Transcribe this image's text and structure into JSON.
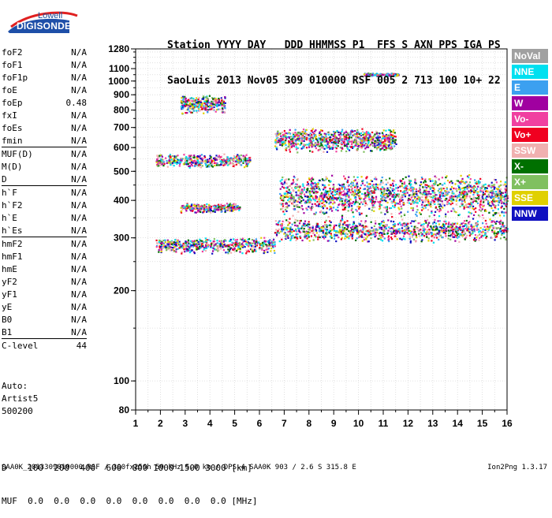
{
  "logo": {
    "top": "Lowell",
    "bottom": "DIGISONDE"
  },
  "header": {
    "line1": "Station YYYY DAY   DDD HHMMSS P1  FFS S AXN PPS IGA PS",
    "line2": "SaoLuis 2013 Nov05 309 010000 RSF 005 2 713 100 10+ 22"
  },
  "params": [
    {
      "k": "foF2",
      "v": "N/A",
      "sep": false
    },
    {
      "k": "foF1",
      "v": "N/A",
      "sep": false
    },
    {
      "k": "foF1p",
      "v": "N/A",
      "sep": false
    },
    {
      "k": "foE",
      "v": "N/A",
      "sep": false
    },
    {
      "k": "foEp",
      "v": "0.48",
      "sep": false
    },
    {
      "k": "fxI",
      "v": "N/A",
      "sep": false
    },
    {
      "k": "foEs",
      "v": "N/A",
      "sep": false
    },
    {
      "k": "fmin",
      "v": "N/A",
      "sep": false
    },
    {
      "k": "MUF(D)",
      "v": "N/A",
      "sep": true
    },
    {
      "k": "M(D)",
      "v": "N/A",
      "sep": false
    },
    {
      "k": "D",
      "v": "N/A",
      "sep": false
    },
    {
      "k": "h`F",
      "v": "N/A",
      "sep": true
    },
    {
      "k": "h`F2",
      "v": "N/A",
      "sep": false
    },
    {
      "k": "h`E",
      "v": "N/A",
      "sep": false
    },
    {
      "k": "h`Es",
      "v": "N/A",
      "sep": false
    },
    {
      "k": "hmF2",
      "v": "N/A",
      "sep": true
    },
    {
      "k": "hmF1",
      "v": "N/A",
      "sep": false
    },
    {
      "k": "hmE",
      "v": "N/A",
      "sep": false
    },
    {
      "k": "yF2",
      "v": "N/A",
      "sep": false
    },
    {
      "k": "yF1",
      "v": "N/A",
      "sep": false
    },
    {
      "k": "yE",
      "v": "N/A",
      "sep": false
    },
    {
      "k": "B0",
      "v": "N/A",
      "sep": false
    },
    {
      "k": "B1",
      "v": "N/A",
      "sep": false
    },
    {
      "k": "C-level",
      "v": "44",
      "sep": true
    }
  ],
  "auto": [
    "Auto:",
    "Artist5",
    "500200"
  ],
  "footer": {
    "d_line": "D    100  200  400  600  800 1000 1500 3000 [km]",
    "muf_line": "MUF  0.0  0.0  0.0  0.0  0.0  0.0  0.0  0.0 [MHz]"
  },
  "bottom": {
    "left": "SAA0K_2013309010000.RSF / 300fx256h 50 kHz 5.0 km / DPS-4 SAA0K 903 / 2.6 S 315.8 E",
    "right": "Ion2Png 1.3.17"
  },
  "legend": [
    {
      "label": "NoVal",
      "color": "#a0a0a0"
    },
    {
      "label": "NNE",
      "color": "#00e0f0"
    },
    {
      "label": "E",
      "color": "#3ca0f0"
    },
    {
      "label": "W",
      "color": "#a000a0"
    },
    {
      "label": "Vo-",
      "color": "#f040a0"
    },
    {
      "label": "Vo+",
      "color": "#f00020"
    },
    {
      "label": "SSW",
      "color": "#f0b0b0"
    },
    {
      "label": "X-",
      "color": "#007000"
    },
    {
      "label": "X+",
      "color": "#80c060"
    },
    {
      "label": "SSE",
      "color": "#e0d000"
    },
    {
      "label": "NNW",
      "color": "#1010c0"
    }
  ],
  "chart_data": {
    "type": "scatter",
    "title": "",
    "xlabel": "",
    "ylabel": "",
    "xlim": [
      1,
      16
    ],
    "xticks": [
      1,
      2,
      3,
      4,
      5,
      6,
      7,
      8,
      9,
      10,
      11,
      12,
      13,
      14,
      15,
      16
    ],
    "ylim": [
      80,
      1280
    ],
    "y_scale": "log",
    "yticks": [
      80,
      100,
      200,
      300,
      400,
      500,
      600,
      700,
      800,
      900,
      1000,
      1100,
      1280
    ],
    "grid": true,
    "series": [
      {
        "name": "O-trace lower",
        "x_range": [
          1.8,
          6.6
        ],
        "y_center": 285,
        "y_spread": 18
      },
      {
        "name": "echo 300 (high f)",
        "x_range": [
          6.6,
          16.0
        ],
        "y_center": 320,
        "y_spread": 30
      },
      {
        "name": "echo 370-450",
        "x_range": [
          2.8,
          5.2
        ],
        "y_center": 380,
        "y_spread": 15
      },
      {
        "name": "echo 400 (high f)",
        "x_range": [
          6.8,
          16.0
        ],
        "y_center": 420,
        "y_spread": 70
      },
      {
        "name": "echo 550",
        "x_range": [
          1.8,
          5.6
        ],
        "y_center": 545,
        "y_spread": 30
      },
      {
        "name": "echo 620",
        "x_range": [
          6.6,
          11.5
        ],
        "y_center": 640,
        "y_spread": 60
      },
      {
        "name": "echo 850",
        "x_range": [
          2.8,
          4.6
        ],
        "y_center": 840,
        "y_spread": 60
      },
      {
        "name": "echo 1050",
        "x_range": [
          10.2,
          11.6
        ],
        "y_center": 1055,
        "y_spread": 12
      }
    ]
  }
}
